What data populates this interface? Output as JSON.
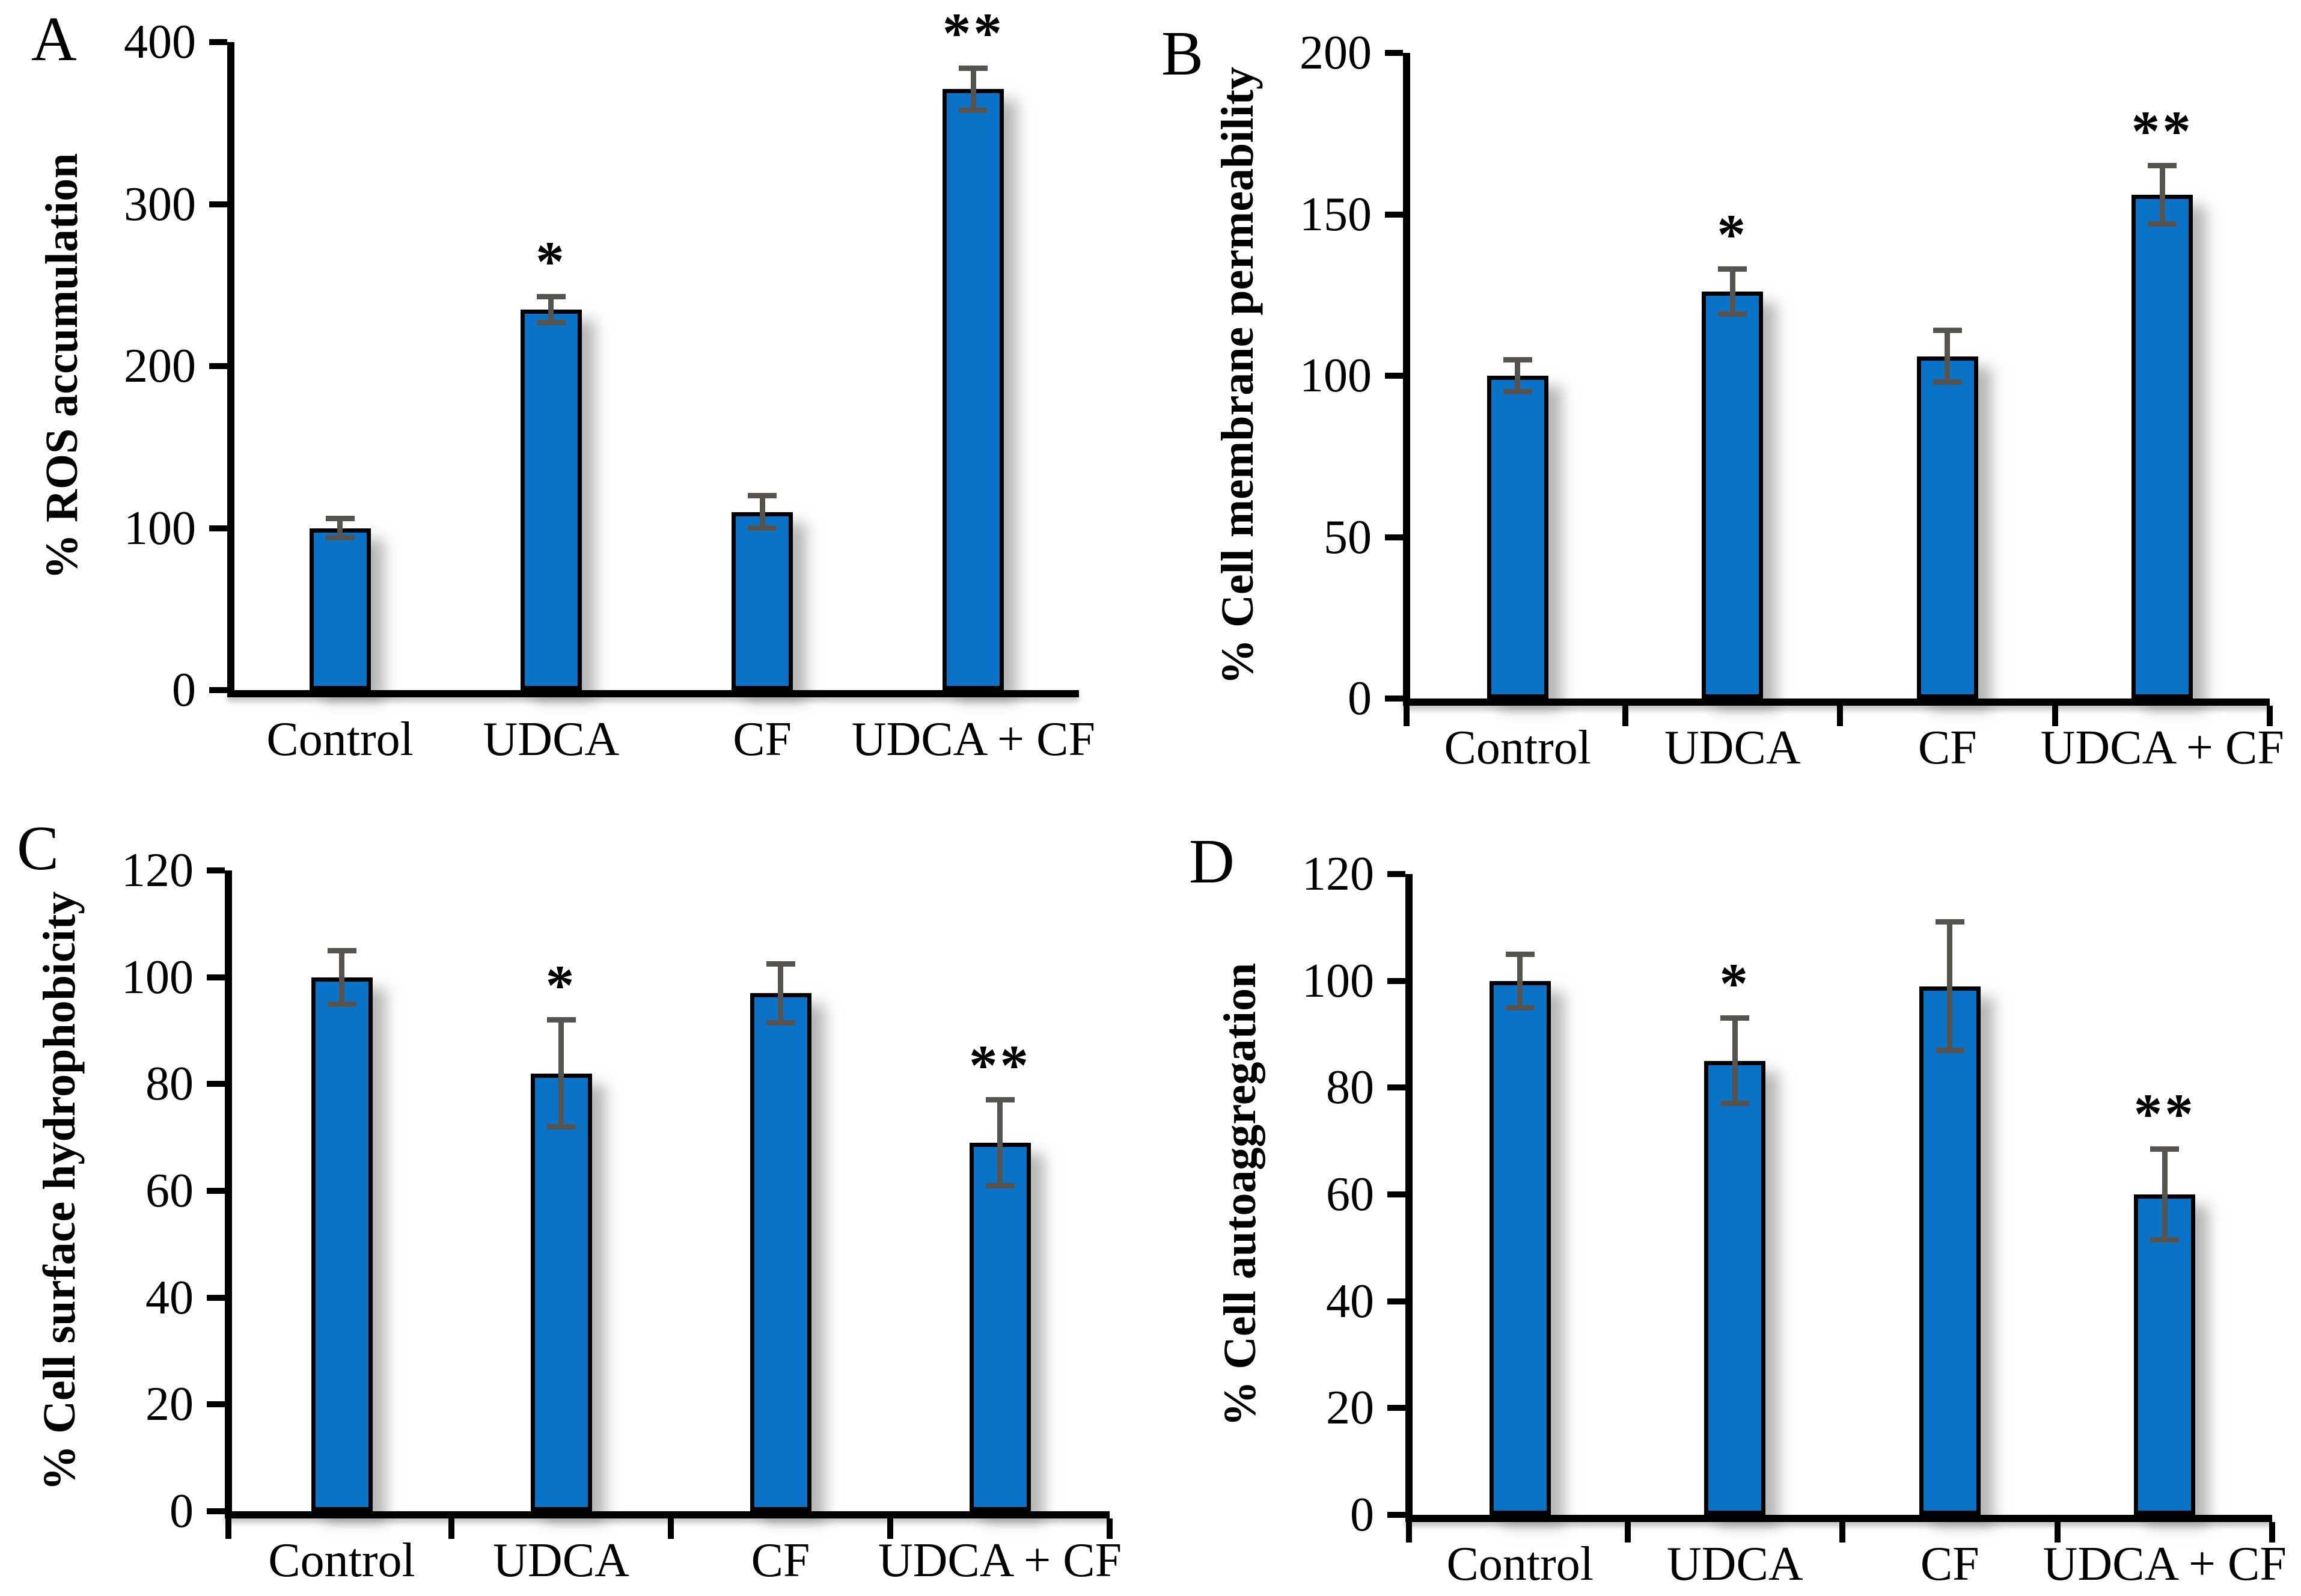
{
  "style": {
    "background": "#ffffff",
    "bar_fill": "#0b73c7",
    "bar_border": "#000000",
    "error_bar_color": "#57534e",
    "text_color": "#000000"
  },
  "chart_data": [
    {
      "type": "bar",
      "panel_label": "A",
      "ylabel": "% ROS accumulation",
      "xlabel": "",
      "ylim": [
        0,
        400
      ],
      "yticks": [
        0,
        100,
        200,
        300,
        400
      ],
      "categories": [
        "Control",
        "UDCA",
        "CF",
        "UDCA + CF"
      ],
      "values": [
        100,
        235,
        110,
        371
      ],
      "errors": [
        6,
        8,
        10,
        13
      ],
      "significance": [
        "",
        "*",
        "",
        "**"
      ],
      "x_boundary_ticks": false,
      "grid": false,
      "legend": "none"
    },
    {
      "type": "bar",
      "panel_label": "B",
      "ylabel": "% Cell membrane permeability",
      "xlabel": "",
      "ylim": [
        0,
        200
      ],
      "yticks": [
        0,
        50,
        100,
        150,
        200
      ],
      "categories": [
        "Control",
        "UDCA",
        "CF",
        "UDCA + CF"
      ],
      "values": [
        100,
        126,
        106,
        156
      ],
      "errors": [
        5,
        7,
        8,
        9
      ],
      "significance": [
        "",
        "*",
        "",
        "**"
      ],
      "x_boundary_ticks": true,
      "grid": false,
      "legend": "none"
    },
    {
      "type": "bar",
      "panel_label": "C",
      "ylabel": "% Cell surface hydrophobicity",
      "xlabel": "",
      "ylim": [
        0,
        120
      ],
      "yticks": [
        0,
        20,
        40,
        60,
        80,
        100,
        120
      ],
      "categories": [
        "Control",
        "UDCA",
        "CF",
        "UDCA + CF"
      ],
      "values": [
        100,
        82,
        97,
        69
      ],
      "errors": [
        5,
        10,
        5.5,
        8
      ],
      "significance": [
        "",
        "*",
        "",
        "**"
      ],
      "x_boundary_ticks": true,
      "grid": false,
      "legend": "none"
    },
    {
      "type": "bar",
      "panel_label": "D",
      "ylabel": "% Cell autoaggregation",
      "xlabel": "",
      "ylim": [
        0,
        120
      ],
      "yticks": [
        0,
        20,
        40,
        60,
        80,
        100,
        120
      ],
      "categories": [
        "Control",
        "UDCA",
        "CF",
        "UDCA + CF"
      ],
      "values": [
        100,
        85,
        99,
        60
      ],
      "errors": [
        5,
        8,
        12,
        8.5
      ],
      "significance": [
        "",
        "*",
        "",
        "**"
      ],
      "x_boundary_ticks": true,
      "grid": false,
      "legend": "none"
    }
  ]
}
